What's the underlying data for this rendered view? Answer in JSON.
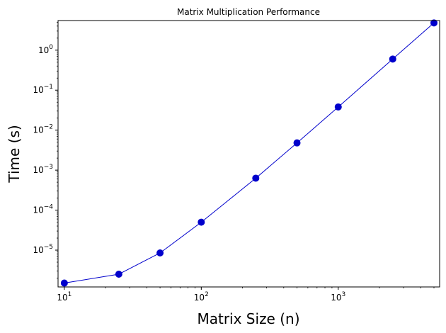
{
  "chart_data": {
    "type": "line",
    "title": "Matrix Multiplication Performance",
    "xlabel": "Matrix Size (n)",
    "ylabel": "Time (s)",
    "xscale": "log",
    "yscale": "log",
    "xlim": [
      9.0,
      5500
    ],
    "ylim": [
      1.2e-06,
      5.5
    ],
    "grid": false,
    "series": [
      {
        "color": "#0000cc",
        "marker": "circle",
        "x": [
          10,
          25,
          50,
          100,
          250,
          500,
          1000,
          2500,
          5000
        ],
        "y": [
          1.5e-06,
          2.5e-06,
          8.5e-06,
          5e-05,
          0.00063,
          0.0048,
          0.038,
          0.6,
          4.8
        ]
      }
    ],
    "x_ticks": [
      {
        "base": "10",
        "exp": "1",
        "value": 10
      },
      {
        "base": "10",
        "exp": "2",
        "value": 100
      },
      {
        "base": "10",
        "exp": "3",
        "value": 1000
      }
    ],
    "y_ticks": [
      {
        "base": "10",
        "exp": "−5",
        "value": 1e-05
      },
      {
        "base": "10",
        "exp": "−4",
        "value": 0.0001
      },
      {
        "base": "10",
        "exp": "−3",
        "value": 0.001
      },
      {
        "base": "10",
        "exp": "−2",
        "value": 0.01
      },
      {
        "base": "10",
        "exp": "−1",
        "value": 0.1
      },
      {
        "base": "10",
        "exp": "0",
        "value": 1
      }
    ]
  }
}
